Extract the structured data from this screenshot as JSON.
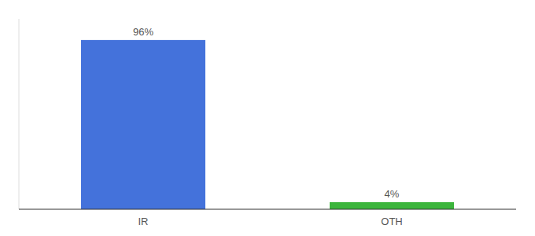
{
  "chart_data": {
    "type": "bar",
    "categories": [
      "IR",
      "OTH"
    ],
    "values": [
      96,
      4
    ],
    "value_labels": [
      "96%",
      "4%"
    ],
    "colors": [
      "#4472db",
      "#3cb53c"
    ],
    "ylim": [
      0,
      108
    ],
    "data_labels": true,
    "tick_labels": "x",
    "grid": false
  }
}
